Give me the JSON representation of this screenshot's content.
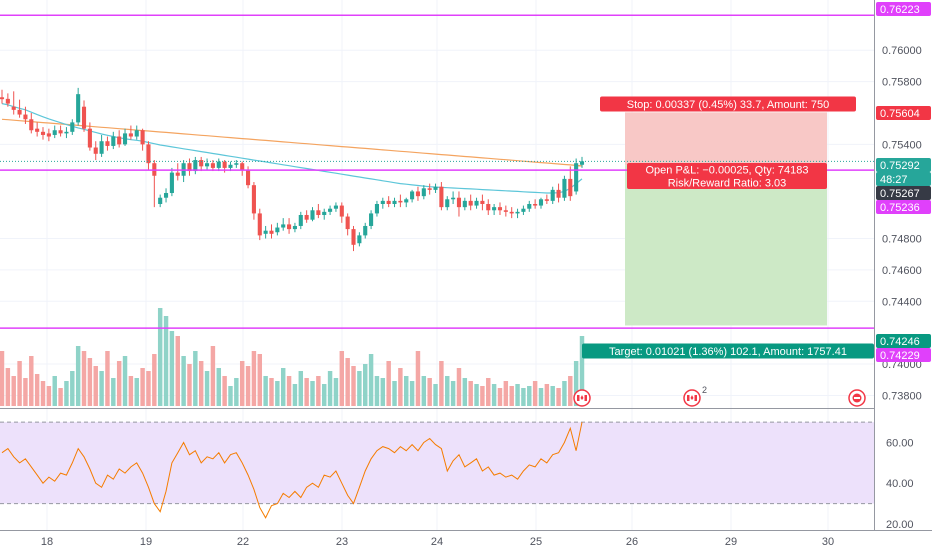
{
  "price_axis": {
    "ticks": [
      "0.76000",
      "0.75800",
      "0.75400",
      "0.74800",
      "0.74600",
      "0.74400",
      "0.74000",
      "0.73800"
    ],
    "badges": [
      {
        "label": "0.76223",
        "color": "#e040fb"
      },
      {
        "label": "0.75604",
        "color": "#f23645"
      },
      {
        "label": "0.75292",
        "color": "#26a69a"
      },
      {
        "label": "48:27",
        "color": "#26a69a"
      },
      {
        "label": "0.75267",
        "color": "#363a45"
      },
      {
        "label": "0.75236",
        "color": "#e040fb"
      },
      {
        "label": "0.74246",
        "color": "#089981"
      },
      {
        "label": "0.74229",
        "color": "#e040fb"
      }
    ]
  },
  "rsi_axis": {
    "ticks": [
      "60.00",
      "40.00",
      "20.00"
    ]
  },
  "time_axis": {
    "ticks": [
      "18",
      "19",
      "22",
      "23",
      "24",
      "25",
      "26",
      "29",
      "30"
    ]
  },
  "position": {
    "stop_label": "Stop: 0.00337 (0.45%) 33.7, Amount: 750",
    "pnl_label": "Open P&L: −0.00025, Qty: 74183",
    "rr_label": "Risk/Reward Ratio: 3.03",
    "target_label": "Target: 0.01021 (1.36%) 102.1, Amount: 1757.41"
  },
  "events": [
    {
      "name": "ca-flag-icon",
      "badge": ""
    },
    {
      "name": "ca-flag-icon",
      "badge": "2"
    },
    {
      "name": "event-icon",
      "badge": ""
    }
  ],
  "colors": {
    "up": "#26a69a",
    "down": "#ef5350",
    "level": "#e040fb",
    "ma_fast": "#5dc6d9",
    "ma_slow": "#f4a460",
    "stop_fill": "#f8c8c6",
    "target_fill": "#cde9c6",
    "rsi_fill": "#ede1fb",
    "rsi_line": "#f57c00"
  },
  "chart_data": {
    "type": "candlestick",
    "y_range": [
      0.7372,
      0.7632
    ],
    "rsi_range": [
      18,
      75
    ],
    "rsi_bands": [
      30,
      70
    ],
    "levels": [
      0.76223,
      0.75236,
      0.74229
    ],
    "last_price": 0.75292,
    "position": {
      "entry": 0.75267,
      "stop": 0.75604,
      "target": 0.74246
    },
    "candles": [
      [
        0.757,
        0.75748,
        0.75688,
        0.7566
      ],
      [
        0.7569,
        0.75725,
        0.7566,
        0.7564
      ],
      [
        0.7564,
        0.75738,
        0.7562,
        0.7559
      ],
      [
        0.7562,
        0.75685,
        0.7559,
        0.7557
      ],
      [
        0.7559,
        0.7564,
        0.7556,
        0.7553
      ],
      [
        0.7556,
        0.756,
        0.7549,
        0.7547
      ],
      [
        0.755,
        0.7554,
        0.7548,
        0.7545
      ],
      [
        0.7548,
        0.7551,
        0.7546,
        0.7543
      ],
      [
        0.7547,
        0.755,
        0.7545,
        0.7542
      ],
      [
        0.7546,
        0.7552,
        0.7549,
        0.7544
      ],
      [
        0.7549,
        0.7552,
        0.7547,
        0.7545
      ],
      [
        0.7547,
        0.7551,
        0.7548,
        0.7544
      ],
      [
        0.7548,
        0.7556,
        0.7554,
        0.7546
      ],
      [
        0.7554,
        0.7576,
        0.7572,
        0.7552
      ],
      [
        0.7564,
        0.7568,
        0.755,
        0.7548
      ],
      [
        0.755,
        0.7554,
        0.7538,
        0.7536
      ],
      [
        0.7538,
        0.7542,
        0.7534,
        0.753
      ],
      [
        0.7534,
        0.7546,
        0.7542,
        0.7532
      ],
      [
        0.7542,
        0.7545,
        0.7539,
        0.7536
      ],
      [
        0.7539,
        0.7548,
        0.7545,
        0.7537
      ],
      [
        0.7545,
        0.7549,
        0.754,
        0.7538
      ],
      [
        0.754,
        0.755,
        0.7547,
        0.7539
      ],
      [
        0.7547,
        0.7552,
        0.7545,
        0.7543
      ],
      [
        0.7545,
        0.7552,
        0.7549,
        0.7543
      ],
      [
        0.7549,
        0.755,
        0.754,
        0.7536
      ],
      [
        0.754,
        0.7542,
        0.7528,
        0.7524
      ],
      [
        0.7528,
        0.753,
        0.752,
        0.75
      ],
      [
        0.7502,
        0.7508,
        0.7506,
        0.75
      ],
      [
        0.7506,
        0.7512,
        0.7509,
        0.7503
      ],
      [
        0.7509,
        0.7525,
        0.7522,
        0.7507
      ],
      [
        0.7522,
        0.7528,
        0.752,
        0.7517
      ],
      [
        0.752,
        0.753,
        0.7528,
        0.7516
      ],
      [
        0.7528,
        0.7531,
        0.7523,
        0.752
      ],
      [
        0.7523,
        0.7532,
        0.753,
        0.7521
      ],
      [
        0.753,
        0.7532,
        0.7526,
        0.7523
      ],
      [
        0.7526,
        0.7531,
        0.7528,
        0.7524
      ],
      [
        0.7528,
        0.753,
        0.7525,
        0.7523
      ],
      [
        0.7525,
        0.7531,
        0.7529,
        0.7523
      ],
      [
        0.7529,
        0.753,
        0.7525,
        0.7522
      ],
      [
        0.7525,
        0.7529,
        0.7527,
        0.7523
      ],
      [
        0.7527,
        0.753,
        0.7528,
        0.7525
      ],
      [
        0.7528,
        0.7529,
        0.7524,
        0.752
      ],
      [
        0.7524,
        0.7526,
        0.7514,
        0.7512
      ],
      [
        0.7514,
        0.7516,
        0.7496,
        0.7492
      ],
      [
        0.7496,
        0.7499,
        0.7482,
        0.7479
      ],
      [
        0.7483,
        0.7488,
        0.7485,
        0.748
      ],
      [
        0.7485,
        0.7489,
        0.7483,
        0.748
      ],
      [
        0.7484,
        0.749,
        0.7487,
        0.7482
      ],
      [
        0.7487,
        0.7493,
        0.7489,
        0.7485
      ],
      [
        0.7489,
        0.7493,
        0.7486,
        0.7483
      ],
      [
        0.7486,
        0.749,
        0.7488,
        0.7484
      ],
      [
        0.7488,
        0.7497,
        0.7495,
        0.7486
      ],
      [
        0.7495,
        0.7498,
        0.7492,
        0.749
      ],
      [
        0.7492,
        0.75,
        0.7498,
        0.7491
      ],
      [
        0.7498,
        0.7502,
        0.7495,
        0.7493
      ],
      [
        0.7495,
        0.7499,
        0.7497,
        0.7492
      ],
      [
        0.7497,
        0.7501,
        0.7499,
        0.7495
      ],
      [
        0.7499,
        0.7503,
        0.7501,
        0.7497
      ],
      [
        0.7501,
        0.7503,
        0.7494,
        0.749
      ],
      [
        0.7494,
        0.7496,
        0.7486,
        0.7482
      ],
      [
        0.7486,
        0.7488,
        0.7476,
        0.7472
      ],
      [
        0.7477,
        0.7484,
        0.7482,
        0.7475
      ],
      [
        0.7482,
        0.749,
        0.7488,
        0.748
      ],
      [
        0.7488,
        0.7498,
        0.7496,
        0.7486
      ],
      [
        0.7496,
        0.7504,
        0.7502,
        0.7494
      ],
      [
        0.7502,
        0.7506,
        0.7504,
        0.7499
      ],
      [
        0.7504,
        0.7507,
        0.7502,
        0.75
      ],
      [
        0.7502,
        0.7506,
        0.7504,
        0.75
      ],
      [
        0.7504,
        0.7508,
        0.7503,
        0.75
      ],
      [
        0.7503,
        0.7506,
        0.7505,
        0.75
      ],
      [
        0.7505,
        0.7511,
        0.751,
        0.7503
      ],
      [
        0.751,
        0.7513,
        0.7507,
        0.7504
      ],
      [
        0.7507,
        0.7514,
        0.7512,
        0.7505
      ],
      [
        0.7512,
        0.7515,
        0.7511,
        0.7508
      ],
      [
        0.7511,
        0.7515,
        0.7513,
        0.7509
      ],
      [
        0.7513,
        0.7516,
        0.75,
        0.7498
      ],
      [
        0.75,
        0.7507,
        0.7505,
        0.7498
      ],
      [
        0.7505,
        0.751,
        0.7506,
        0.7502
      ],
      [
        0.7506,
        0.751,
        0.75,
        0.7494
      ],
      [
        0.75,
        0.7506,
        0.7504,
        0.7498
      ],
      [
        0.7504,
        0.7508,
        0.7501,
        0.7498
      ],
      [
        0.7501,
        0.7506,
        0.7504,
        0.7499
      ],
      [
        0.7504,
        0.7508,
        0.7502,
        0.7498
      ],
      [
        0.7502,
        0.7505,
        0.7498,
        0.7495
      ],
      [
        0.7498,
        0.7502,
        0.75,
        0.7495
      ],
      [
        0.75,
        0.7503,
        0.7498,
        0.7495
      ],
      [
        0.7498,
        0.7501,
        0.7497,
        0.7494
      ],
      [
        0.7497,
        0.75,
        0.7496,
        0.7493
      ],
      [
        0.7496,
        0.7499,
        0.7497,
        0.7493
      ],
      [
        0.7497,
        0.7501,
        0.7499,
        0.7495
      ],
      [
        0.7499,
        0.7504,
        0.7502,
        0.7497
      ],
      [
        0.7502,
        0.7505,
        0.7501,
        0.7499
      ],
      [
        0.7501,
        0.7506,
        0.7505,
        0.7499
      ],
      [
        0.7505,
        0.7508,
        0.7504,
        0.7502
      ],
      [
        0.7504,
        0.7513,
        0.7511,
        0.7502
      ],
      [
        0.7511,
        0.7515,
        0.7506,
        0.7503
      ],
      [
        0.7506,
        0.752,
        0.7518,
        0.7504
      ],
      [
        0.7518,
        0.7526,
        0.7507,
        0.7504
      ],
      [
        0.751,
        0.7531,
        0.7528,
        0.7508
      ],
      [
        0.7527,
        0.7532,
        0.75292,
        0.7525
      ]
    ],
    "volume": [
      0.55,
      0.38,
      0.3,
      0.45,
      0.28,
      0.5,
      0.32,
      0.25,
      0.2,
      0.3,
      0.18,
      0.25,
      0.35,
      0.6,
      0.55,
      0.48,
      0.4,
      0.35,
      0.55,
      0.28,
      0.45,
      0.5,
      0.3,
      0.28,
      0.38,
      0.35,
      0.52,
      0.98,
      0.9,
      0.75,
      0.7,
      0.5,
      0.42,
      0.55,
      0.45,
      0.35,
      0.6,
      0.38,
      0.3,
      0.2,
      0.28,
      0.45,
      0.4,
      0.55,
      0.52,
      0.3,
      0.28,
      0.25,
      0.38,
      0.3,
      0.22,
      0.35,
      0.28,
      0.25,
      0.3,
      0.22,
      0.35,
      0.28,
      0.55,
      0.48,
      0.4,
      0.35,
      0.42,
      0.52,
      0.3,
      0.28,
      0.45,
      0.25,
      0.38,
      0.3,
      0.25,
      0.55,
      0.3,
      0.28,
      0.22,
      0.45,
      0.3,
      0.25,
      0.38,
      0.28,
      0.25,
      0.22,
      0.2,
      0.28,
      0.22,
      0.18,
      0.25,
      0.2,
      0.22,
      0.18,
      0.2,
      0.25,
      0.18,
      0.22,
      0.2,
      0.18,
      0.25,
      0.3,
      0.45,
      0.7
    ],
    "rsi": [
      55,
      57,
      53,
      50,
      52,
      48,
      44,
      40,
      43,
      41,
      45,
      44,
      50,
      57,
      53,
      47,
      40,
      38,
      44,
      42,
      47,
      45,
      48,
      50,
      45,
      38,
      30,
      26,
      36,
      50,
      55,
      60,
      54,
      56,
      50,
      53,
      52,
      55,
      50,
      54,
      55,
      50,
      44,
      37,
      28,
      23,
      29,
      30,
      35,
      33,
      36,
      33,
      38,
      40,
      38,
      44,
      43,
      46,
      40,
      34,
      30,
      38,
      46,
      52,
      56,
      58,
      57,
      55,
      58,
      56,
      59,
      56,
      60,
      62,
      59,
      57,
      46,
      51,
      54,
      48,
      50,
      52,
      46,
      48,
      44,
      45,
      43,
      44,
      42,
      46,
      49,
      48,
      52,
      50,
      54,
      55,
      60,
      67,
      56,
      70
    ],
    "ma_fast": [
      0.7566,
      0.75652,
      0.7564,
      0.7563,
      0.7562,
      0.75605,
      0.7559,
      0.75576,
      0.75562,
      0.7555,
      0.75538,
      0.75526,
      0.75515,
      0.75505,
      0.75496,
      0.75486,
      0.75476,
      0.75466,
      0.75458,
      0.7545,
      0.75442,
      0.75436,
      0.7543,
      0.75426,
      0.7542,
      0.75412,
      0.75404,
      0.75396,
      0.7539,
      0.75384,
      0.75378,
      0.75372,
      0.75366,
      0.7536,
      0.75354,
      0.75348,
      0.75342,
      0.75336,
      0.7533,
      0.75324,
      0.75318,
      0.75312,
      0.75306,
      0.753,
      0.75294,
      0.75288,
      0.75282,
      0.75276,
      0.7527,
      0.75264,
      0.75258,
      0.75252,
      0.75246,
      0.7524,
      0.75234,
      0.75228,
      0.75222,
      0.75216,
      0.7521,
      0.75204,
      0.75198,
      0.75192,
      0.75186,
      0.7518,
      0.75174,
      0.75168,
      0.75162,
      0.75156,
      0.7515,
      0.75146,
      0.75142,
      0.75138,
      0.75134,
      0.7513,
      0.75128,
      0.75126,
      0.75124,
      0.75122,
      0.7512,
      0.75118,
      0.75116,
      0.75114,
      0.75112,
      0.7511,
      0.75108,
      0.75106,
      0.75104,
      0.75102,
      0.751,
      0.75098,
      0.75096,
      0.75094,
      0.75092,
      0.7509,
      0.7509,
      0.75092,
      0.751,
      0.7512,
      0.7515,
      0.7518
    ],
    "ma_slow": [
      0.7556,
      0.75557,
      0.75554,
      0.75551,
      0.75548,
      0.75545,
      0.75542,
      0.75539,
      0.75536,
      0.75533,
      0.7553,
      0.75527,
      0.75524,
      0.75521,
      0.75518,
      0.75515,
      0.75512,
      0.75509,
      0.75506,
      0.75503,
      0.755,
      0.75497,
      0.75494,
      0.75491,
      0.75488,
      0.75485,
      0.75482,
      0.75479,
      0.75476,
      0.75473,
      0.7547,
      0.75467,
      0.75464,
      0.75461,
      0.75458,
      0.75455,
      0.75452,
      0.75449,
      0.75446,
      0.75443,
      0.7544,
      0.75437,
      0.75434,
      0.75431,
      0.75428,
      0.75425,
      0.75422,
      0.75419,
      0.75416,
      0.75413,
      0.7541,
      0.75407,
      0.75404,
      0.75401,
      0.75398,
      0.75395,
      0.75392,
      0.75389,
      0.75386,
      0.75383,
      0.7538,
      0.75377,
      0.75374,
      0.75371,
      0.75368,
      0.75365,
      0.75362,
      0.75359,
      0.75356,
      0.75353,
      0.7535,
      0.75347,
      0.75344,
      0.75341,
      0.75338,
      0.75335,
      0.75332,
      0.75329,
      0.75326,
      0.75323,
      0.7532,
      0.75317,
      0.75314,
      0.75311,
      0.75308,
      0.75305,
      0.75302,
      0.75299,
      0.75296,
      0.75293,
      0.7529,
      0.75287,
      0.75284,
      0.75281,
      0.75278,
      0.75275,
      0.75272,
      0.75269,
      0.75266,
      0.75263
    ]
  }
}
